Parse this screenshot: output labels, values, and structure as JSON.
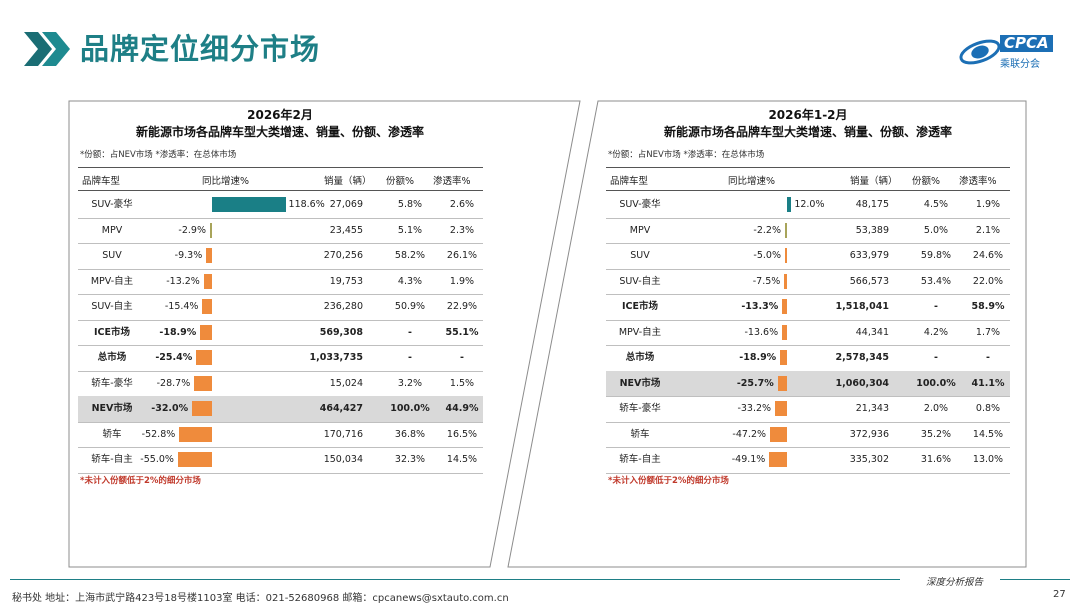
{
  "header": {
    "title": "品牌定位细分市场",
    "logo_text": "CPCA",
    "logo_sub": "乘联分会"
  },
  "colors": {
    "teal": "#1a7f86",
    "orange": "#ef8b3c",
    "olive": "#a8a45a",
    "highlight": "#d9d9d9"
  },
  "panels": [
    {
      "title_line1": "2026年2月",
      "title_line2": "新能源市场各品牌车型大类增速、销量、份额、渗透率",
      "note": "*份额：占NEV市场  *渗透率：在总体市场",
      "headers": {
        "segment": "品牌车型",
        "yoy": "同比增速%",
        "sales": "销量（辆）",
        "share": "份额%",
        "pen": "渗透率%"
      },
      "footnote": "*未计入份额低于2%的细分市场",
      "rows": [
        {
          "segment": "SUV-豪华",
          "yoy": 118.6,
          "yoy_label": "118.6%",
          "sales": "27,069",
          "share": "5.8%",
          "pen": "2.6%",
          "bold": false,
          "highlight": false
        },
        {
          "segment": "MPV",
          "yoy": -2.9,
          "yoy_label": "-2.9%",
          "sales": "23,455",
          "share": "5.1%",
          "pen": "2.3%",
          "bold": false,
          "highlight": false
        },
        {
          "segment": "SUV",
          "yoy": -9.3,
          "yoy_label": "-9.3%",
          "sales": "270,256",
          "share": "58.2%",
          "pen": "26.1%",
          "bold": false,
          "highlight": false
        },
        {
          "segment": "MPV-自主",
          "yoy": -13.2,
          "yoy_label": "-13.2%",
          "sales": "19,753",
          "share": "4.3%",
          "pen": "1.9%",
          "bold": false,
          "highlight": false
        },
        {
          "segment": "SUV-自主",
          "yoy": -15.4,
          "yoy_label": "-15.4%",
          "sales": "236,280",
          "share": "50.9%",
          "pen": "22.9%",
          "bold": false,
          "highlight": false
        },
        {
          "segment": "ICE市场",
          "yoy": -18.9,
          "yoy_label": "-18.9%",
          "sales": "569,308",
          "share": "-",
          "pen": "55.1%",
          "bold": true,
          "highlight": false
        },
        {
          "segment": "总市场",
          "yoy": -25.4,
          "yoy_label": "-25.4%",
          "sales": "1,033,735",
          "share": "-",
          "pen": "-",
          "bold": true,
          "highlight": false
        },
        {
          "segment": "轿车-豪华",
          "yoy": -28.7,
          "yoy_label": "-28.7%",
          "sales": "15,024",
          "share": "3.2%",
          "pen": "1.5%",
          "bold": false,
          "highlight": false
        },
        {
          "segment": "NEV市场",
          "yoy": -32.0,
          "yoy_label": "-32.0%",
          "sales": "464,427",
          "share": "100.0%",
          "pen": "44.9%",
          "bold": true,
          "highlight": true
        },
        {
          "segment": "轿车",
          "yoy": -52.8,
          "yoy_label": "-52.8%",
          "sales": "170,716",
          "share": "36.8%",
          "pen": "16.5%",
          "bold": false,
          "highlight": false
        },
        {
          "segment": "轿车-自主",
          "yoy": -55.0,
          "yoy_label": "-55.0%",
          "sales": "150,034",
          "share": "32.3%",
          "pen": "14.5%",
          "bold": false,
          "highlight": false
        }
      ]
    },
    {
      "title_line1": "2026年1-2月",
      "title_line2": "新能源市场各品牌车型大类增速、销量、份额、渗透率",
      "note": "*份额：占NEV市场  *渗透率：在总体市场",
      "headers": {
        "segment": "品牌车型",
        "yoy": "同比增速%",
        "sales": "销量（辆）",
        "share": "份额%",
        "pen": "渗透率%"
      },
      "footnote": "*未计入份额低于2%的细分市场",
      "rows": [
        {
          "segment": "SUV-豪华",
          "yoy": 12.0,
          "yoy_label": "12.0%",
          "sales": "48,175",
          "share": "4.5%",
          "pen": "1.9%",
          "bold": false,
          "highlight": false
        },
        {
          "segment": "MPV",
          "yoy": -2.2,
          "yoy_label": "-2.2%",
          "sales": "53,389",
          "share": "5.0%",
          "pen": "2.1%",
          "bold": false,
          "highlight": false
        },
        {
          "segment": "SUV",
          "yoy": -5.0,
          "yoy_label": "-5.0%",
          "sales": "633,979",
          "share": "59.8%",
          "pen": "24.6%",
          "bold": false,
          "highlight": false
        },
        {
          "segment": "SUV-自主",
          "yoy": -7.5,
          "yoy_label": "-7.5%",
          "sales": "566,573",
          "share": "53.4%",
          "pen": "22.0%",
          "bold": false,
          "highlight": false
        },
        {
          "segment": "ICE市场",
          "yoy": -13.3,
          "yoy_label": "-13.3%",
          "sales": "1,518,041",
          "share": "-",
          "pen": "58.9%",
          "bold": true,
          "highlight": false
        },
        {
          "segment": "MPV-自主",
          "yoy": -13.6,
          "yoy_label": "-13.6%",
          "sales": "44,341",
          "share": "4.2%",
          "pen": "1.7%",
          "bold": false,
          "highlight": false
        },
        {
          "segment": "总市场",
          "yoy": -18.9,
          "yoy_label": "-18.9%",
          "sales": "2,578,345",
          "share": "-",
          "pen": "-",
          "bold": true,
          "highlight": false
        },
        {
          "segment": "NEV市场",
          "yoy": -25.7,
          "yoy_label": "-25.7%",
          "sales": "1,060,304",
          "share": "100.0%",
          "pen": "41.1%",
          "bold": true,
          "highlight": true
        },
        {
          "segment": "轿车-豪华",
          "yoy": -33.2,
          "yoy_label": "-33.2%",
          "sales": "21,343",
          "share": "2.0%",
          "pen": "0.8%",
          "bold": false,
          "highlight": false
        },
        {
          "segment": "轿车",
          "yoy": -47.2,
          "yoy_label": "-47.2%",
          "sales": "372,936",
          "share": "35.2%",
          "pen": "14.5%",
          "bold": false,
          "highlight": false
        },
        {
          "segment": "轿车-自主",
          "yoy": -49.1,
          "yoy_label": "-49.1%",
          "sales": "335,302",
          "share": "31.6%",
          "pen": "13.0%",
          "bold": false,
          "highlight": false
        }
      ]
    }
  ],
  "footer": {
    "left": "秘书处   地址：上海市武宁路423号18号楼1103室  电话：021-52680968   邮箱：cpcanews@sxtauto.com.cn",
    "right": "深度分析报告",
    "page": "27"
  }
}
